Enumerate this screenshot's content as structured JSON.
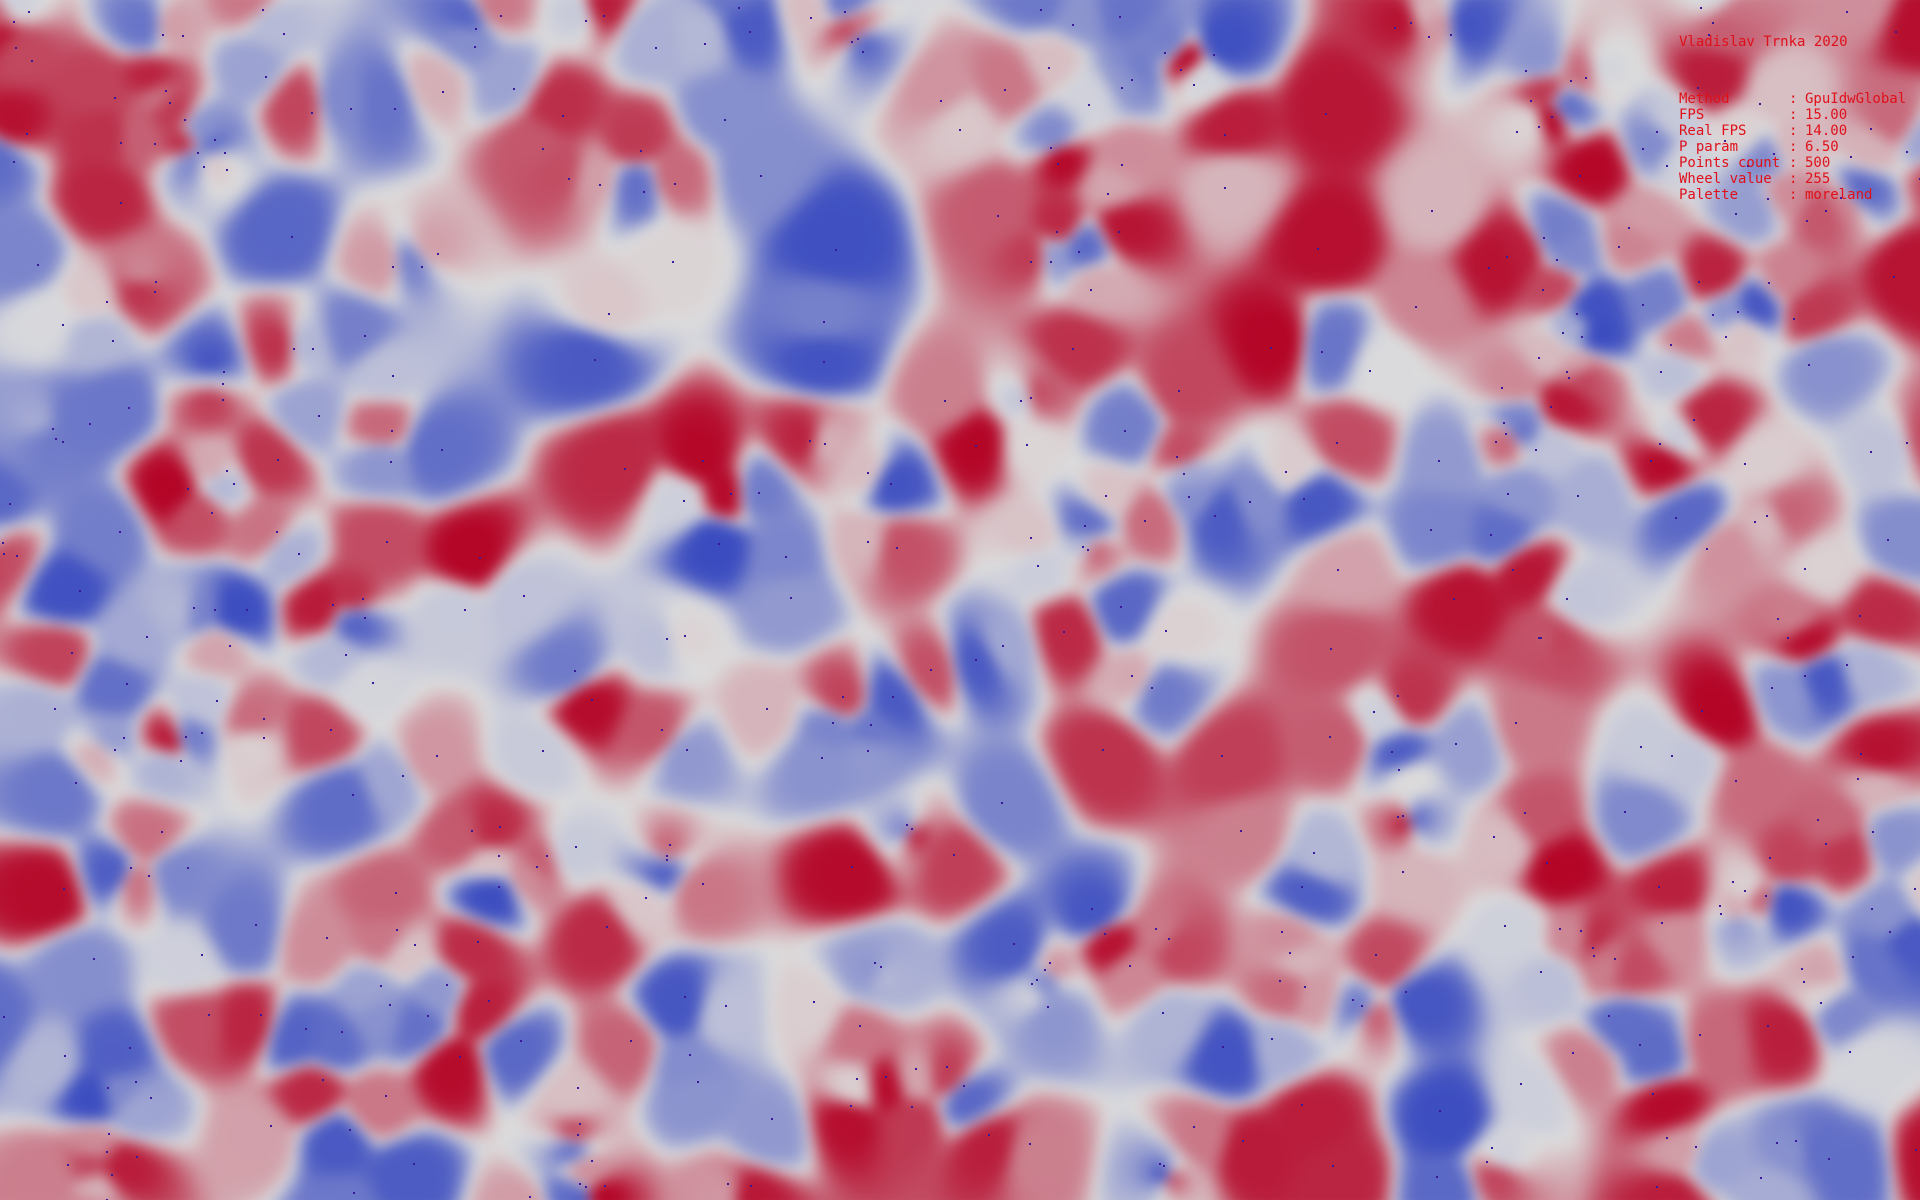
{
  "overlay": {
    "credit": "Vladislav Trnka 2020",
    "stats": [
      {
        "label": "Method",
        "value": "GpuIdwGlobal"
      },
      {
        "label": "FPS",
        "value": "15.00"
      },
      {
        "label": "Real FPS",
        "value": "14.00"
      },
      {
        "label": "P param",
        "value": "6.50"
      },
      {
        "label": "Points count",
        "value": "500"
      },
      {
        "label": "Wheel value",
        "value": "255"
      },
      {
        "label": "Palette",
        "value": "moreland"
      }
    ],
    "text_color": "#e0101a"
  },
  "visualization": {
    "palette": {
      "name": "moreland",
      "low": "#3b4cc0",
      "mid": "#dddddd",
      "high": "#b40426"
    },
    "point_color": "#3a1a9a",
    "p_param": 6.5,
    "points_count": 500
  }
}
